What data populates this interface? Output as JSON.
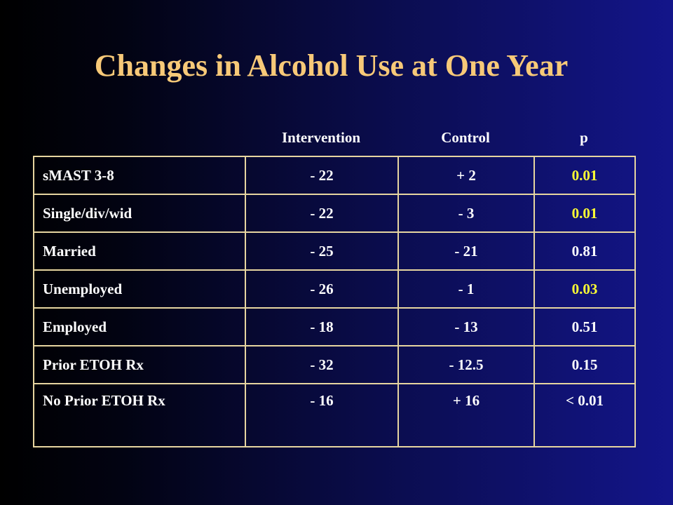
{
  "slide": {
    "title": "Changes in Alcohol Use at One Year"
  },
  "table": {
    "headers": {
      "intervention": "Intervention",
      "control": "Control",
      "p": "p"
    },
    "rows": [
      {
        "label": "sMAST 3-8",
        "intervention": "- 22",
        "control": "+ 2",
        "p": "0.01",
        "p_color": "#ffff33"
      },
      {
        "label": "Single/div/wid",
        "intervention": "- 22",
        "control": "- 3",
        "p": "0.01",
        "p_color": "#ffff33"
      },
      {
        "label": "Married",
        "intervention": "- 25",
        "control": "- 21",
        "p": "0.81",
        "p_color": "#ffffff"
      },
      {
        "label": "Unemployed",
        "intervention": "- 26",
        "control": "- 1",
        "p": "0.03",
        "p_color": "#ffff33"
      },
      {
        "label": "Employed",
        "intervention": "- 18",
        "control": "- 13",
        "p": "0.51",
        "p_color": "#ffffff"
      },
      {
        "label": "Prior ETOH Rx",
        "intervention": "- 32",
        "control": "- 12.5",
        "p": "0.15",
        "p_color": "#ffffff"
      },
      {
        "label": "No Prior ETOH Rx",
        "intervention": "- 16",
        "control": "+ 16",
        "p": "< 0.01",
        "p_color": "#ffffff"
      }
    ]
  },
  "colors": {
    "title": "#f7c978",
    "text": "#ffffff",
    "significant_p": "#ffff33",
    "table_border": "#e6d5a0"
  }
}
